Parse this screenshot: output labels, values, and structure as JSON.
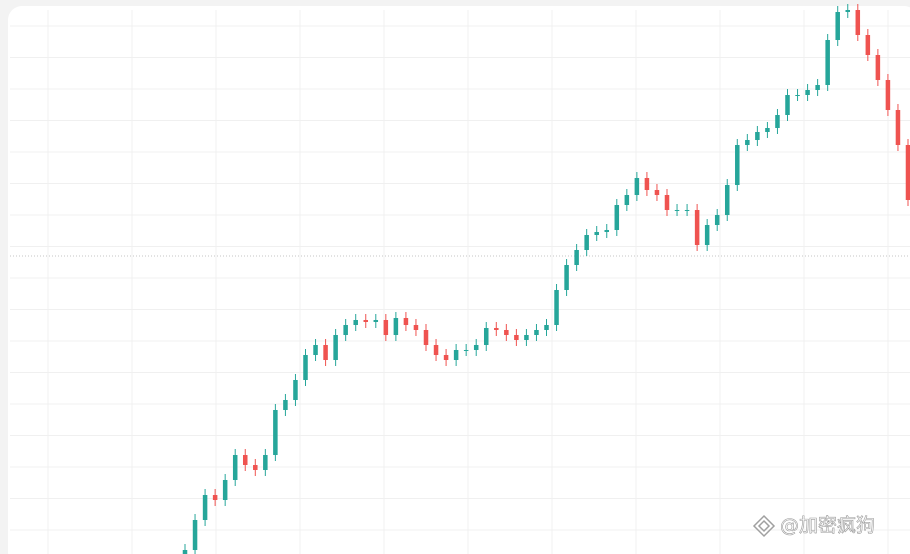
{
  "chart_data": {
    "type": "candlestick",
    "open": [
      0,
      4,
      34,
      59,
      54,
      74,
      99,
      89,
      84,
      99,
      144,
      154,
      174,
      199,
      209,
      194,
      219,
      229,
      234,
      232,
      234,
      219,
      236,
      229,
      224,
      209,
      199,
      194,
      204,
      204,
      209,
      226,
      224,
      219,
      214,
      219,
      224,
      229,
      264,
      289,
      304,
      319,
      322,
      324,
      349,
      359,
      376,
      364,
      359,
      344,
      344,
      344,
      309,
      329,
      339,
      369,
      409,
      414,
      422,
      426,
      439,
      459,
      459,
      464,
      469,
      514,
      542,
      544,
      519,
      499,
      474,
      444,
      409
    ],
    "high": [
      10,
      40,
      65,
      65,
      80,
      105,
      105,
      95,
      105,
      150,
      160,
      180,
      205,
      215,
      215,
      225,
      235,
      240,
      240,
      240,
      240,
      242,
      242,
      235,
      230,
      215,
      205,
      210,
      210,
      215,
      232,
      232,
      230,
      225,
      225,
      230,
      235,
      270,
      295,
      310,
      325,
      328,
      330,
      355,
      365,
      382,
      382,
      370,
      365,
      350,
      350,
      350,
      335,
      345,
      375,
      415,
      420,
      428,
      432,
      445,
      465,
      465,
      470,
      475,
      520,
      548,
      550,
      550,
      525,
      505,
      480,
      450,
      415
    ],
    "low": [
      -6,
      -2,
      28,
      48,
      48,
      68,
      83,
      78,
      78,
      93,
      138,
      148,
      168,
      193,
      188,
      188,
      213,
      223,
      226,
      226,
      213,
      213,
      223,
      218,
      203,
      193,
      188,
      188,
      198,
      198,
      203,
      218,
      213,
      208,
      208,
      213,
      218,
      223,
      258,
      283,
      298,
      313,
      316,
      318,
      343,
      353,
      358,
      353,
      338,
      338,
      338,
      303,
      303,
      323,
      333,
      363,
      403,
      408,
      416,
      420,
      433,
      453,
      453,
      458,
      463,
      508,
      536,
      513,
      493,
      468,
      438,
      403,
      348
    ],
    "close": [
      4,
      34,
      59,
      54,
      74,
      99,
      89,
      84,
      99,
      144,
      154,
      174,
      199,
      209,
      194,
      219,
      229,
      234,
      232,
      234,
      219,
      236,
      229,
      224,
      209,
      199,
      194,
      204,
      204,
      209,
      226,
      224,
      219,
      214,
      219,
      224,
      229,
      264,
      289,
      304,
      319,
      322,
      324,
      349,
      359,
      376,
      364,
      359,
      344,
      344,
      344,
      309,
      329,
      339,
      369,
      409,
      414,
      422,
      426,
      439,
      459,
      459,
      464,
      469,
      514,
      542,
      544,
      519,
      499,
      474,
      444,
      409,
      354
    ],
    "up_color": "#26a69a",
    "down_color": "#ef5350",
    "ylim": [
      -10,
      556
    ],
    "grid": true,
    "reference_line": 298,
    "watermark": "@加密疯狗"
  }
}
